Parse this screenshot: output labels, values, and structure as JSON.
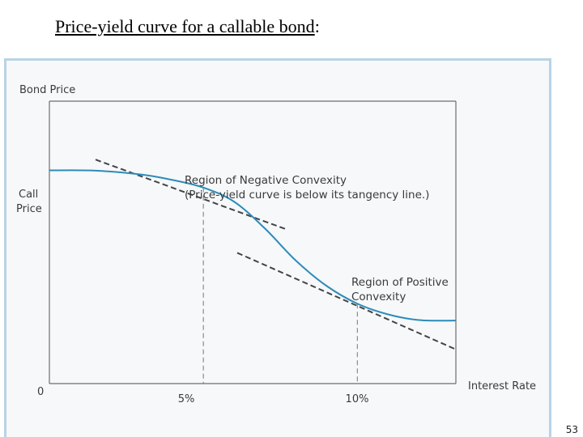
{
  "slide": {
    "title": "Price-yield curve for a callable bond",
    "title_suffix": ":",
    "page_number": "53"
  },
  "chart_data": {
    "type": "line",
    "xlabel": "Interest Rate",
    "ylabel": "Bond Price",
    "origin_label": "0",
    "call_price_label": [
      "Call",
      "Price"
    ],
    "x_ticks": [
      "5%",
      "10%"
    ],
    "xlim": [
      0,
      13.2
    ],
    "ylim": [
      0,
      100
    ],
    "grid": false,
    "series": [
      {
        "style": "solid",
        "color": "#2d8bb8",
        "x": [
          0,
          1.5,
          3,
          4,
          5,
          6,
          7,
          8,
          9,
          10,
          11,
          12,
          13.2
        ],
        "y": [
          75.5,
          75.4,
          74,
          72.1,
          69.4,
          64.4,
          54.9,
          43.6,
          34.6,
          28.3,
          24.5,
          22.5,
          22.3
        ]
      },
      {
        "style": "dashed",
        "color": "#444444",
        "x": [
          1.5,
          7.7
        ],
        "y": [
          79.3,
          54.6
        ]
      },
      {
        "style": "dashed",
        "color": "#444444",
        "x": [
          6.1,
          13.2
        ],
        "y": [
          46.3,
          12.1
        ]
      }
    ],
    "reference_lines": [
      {
        "x": 5,
        "y_top": 69.4,
        "style": "dashed"
      },
      {
        "x": 10,
        "y_top": 28.3,
        "style": "dashed"
      }
    ],
    "annotations": [
      {
        "lines": [
          "Region of Negative Convexity",
          "(Price-yield curve is below its tangency line.)"
        ]
      },
      {
        "lines": [
          "Region of Positive",
          "Convexity"
        ]
      }
    ],
    "colors": {
      "curve": "#2d8bb8",
      "tangent": "#444444",
      "axis": "#6e6e6e",
      "frame": "#b9d3e6"
    }
  }
}
